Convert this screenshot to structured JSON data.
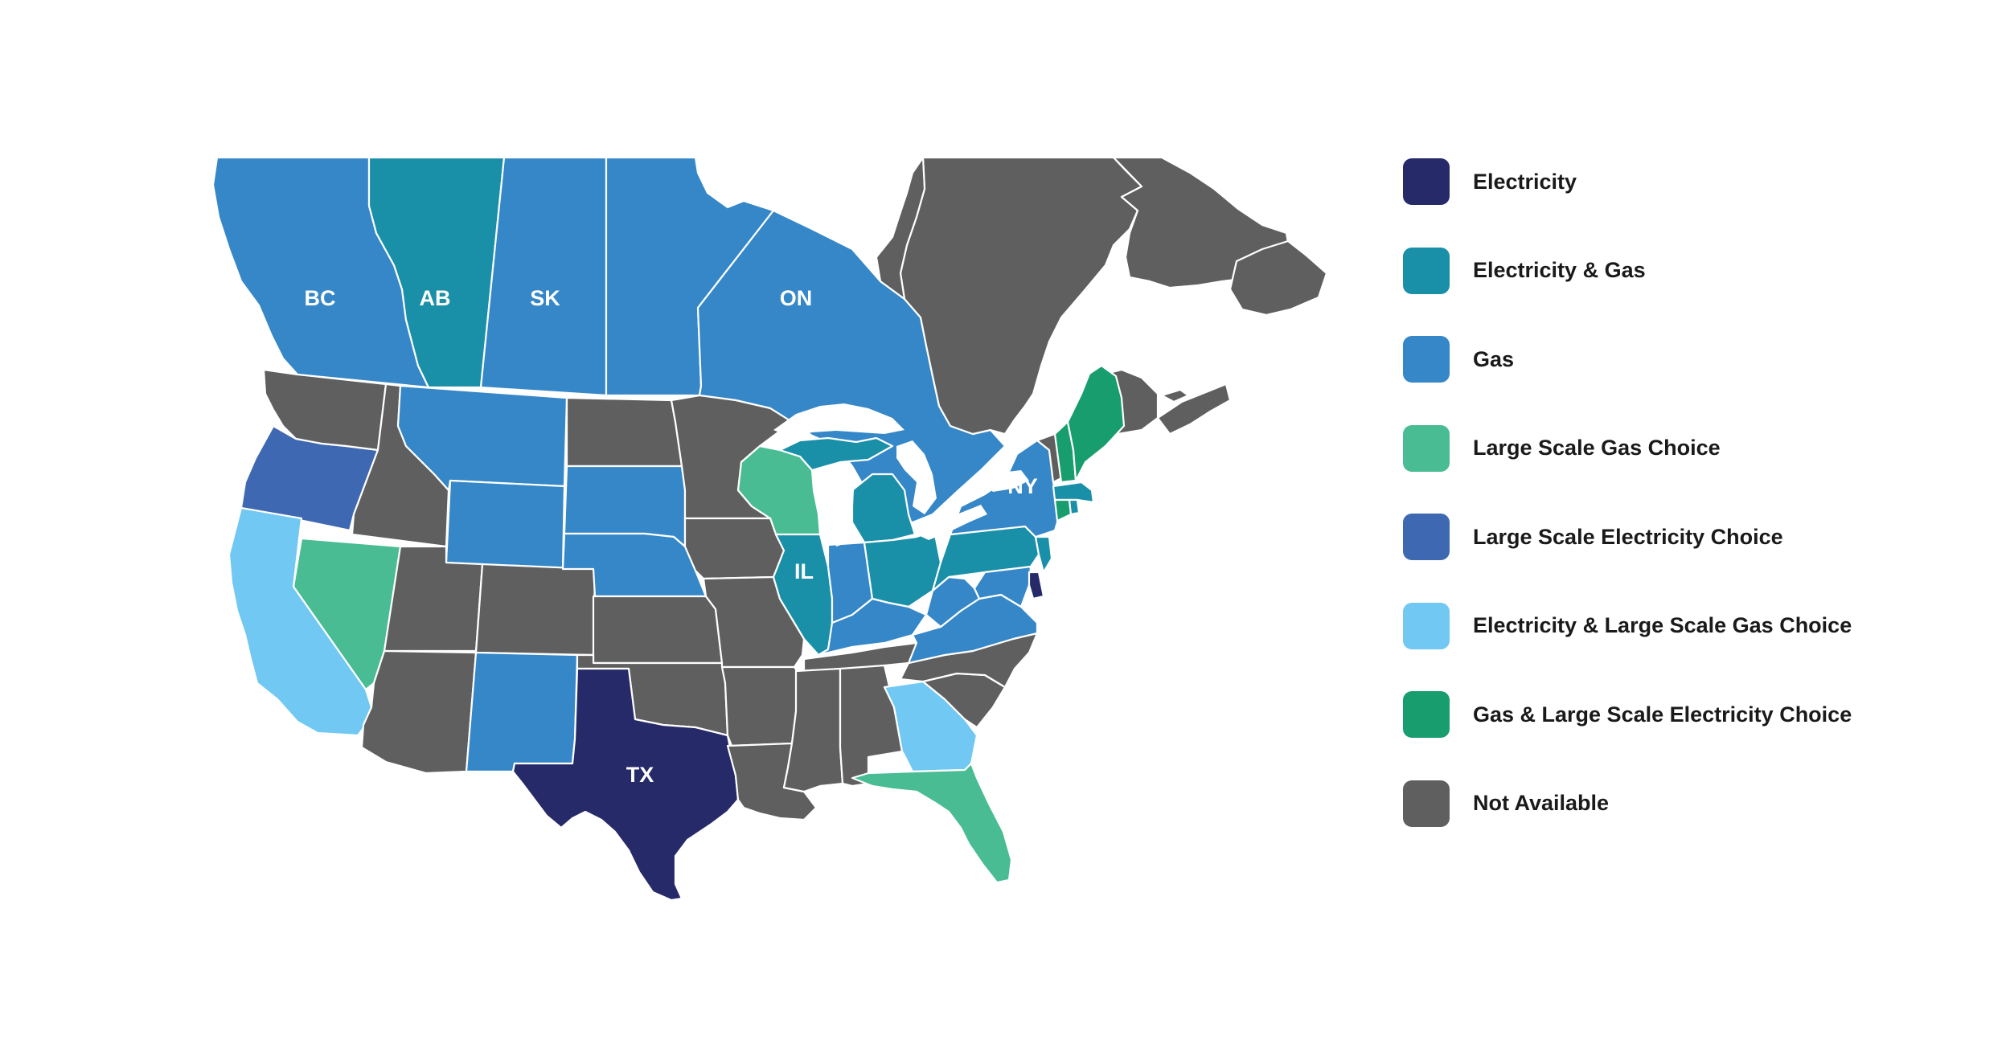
{
  "colors": {
    "electricity": "#262a69",
    "electricity_gas": "#198fa8",
    "gas": "#3587c8",
    "large_scale_gas_choice": "#49bc93",
    "large_scale_electricity_choice": "#3f68b2",
    "electricity_large_scale_gas_choice": "#71c8f2",
    "gas_large_scale_electricity_choice": "#179d6e",
    "not_available": "#5f5f5f"
  },
  "map_labels": {
    "bc": "BC",
    "ab": "AB",
    "sk": "SK",
    "on": "ON",
    "ny": "NY",
    "il": "IL",
    "tx": "TX"
  },
  "legend": [
    {
      "label": "Electricity",
      "color": "#262a69"
    },
    {
      "label": "Electricity & Gas",
      "color": "#198fa8"
    },
    {
      "label": "Gas",
      "color": "#3587c8"
    },
    {
      "label": "Large Scale Gas Choice",
      "color": "#49bc93"
    },
    {
      "label": "Large Scale Electricity Choice",
      "color": "#3f68b2"
    },
    {
      "label": "Electricity & Large Scale Gas Choice",
      "color": "#71c8f2"
    },
    {
      "label": "Gas & Large Scale Electricity Choice",
      "color": "#179d6e"
    },
    {
      "label": "Not Available",
      "color": "#5f5f5f"
    }
  ]
}
